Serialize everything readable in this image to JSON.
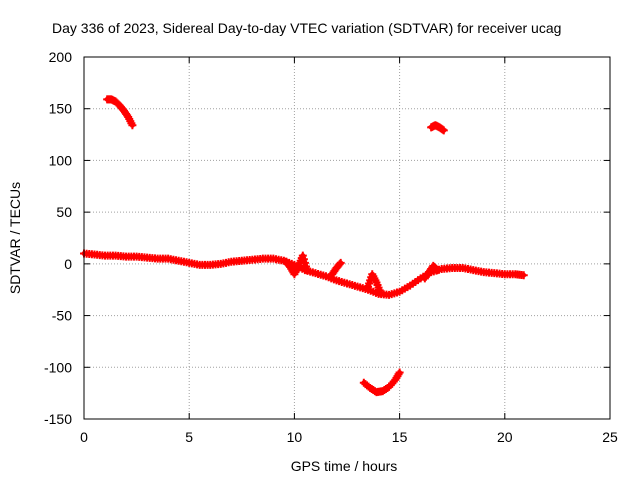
{
  "chart_data": {
    "type": "scatter",
    "title": "Day 336 of 2023, Sidereal Day-to-day VTEC variation (SDTVAR) for receiver ucag",
    "xlabel": "GPS time / hours",
    "ylabel": "SDTVAR / TECUs",
    "xlim": [
      0,
      25
    ],
    "ylim": [
      -150,
      200
    ],
    "xticks": [
      0,
      5,
      10,
      15,
      20,
      25
    ],
    "yticks": [
      -150,
      -100,
      -50,
      0,
      50,
      100,
      150,
      200
    ],
    "grid": true,
    "series_color": "#ff0000",
    "series": [
      {
        "name": "main-trace",
        "x": [
          0.0,
          0.5,
          1.0,
          1.5,
          2.0,
          2.5,
          3.0,
          3.5,
          4.0,
          4.5,
          5.0,
          5.5,
          6.0,
          6.5,
          7.0,
          7.5,
          8.0,
          8.5,
          9.0,
          9.5,
          10.0,
          10.5,
          11.0,
          11.5,
          12.0,
          12.5,
          13.0,
          13.5,
          14.0,
          14.5,
          15.0,
          15.5,
          16.0,
          16.5,
          17.0,
          17.5,
          18.0,
          18.5,
          19.0,
          19.5,
          20.0,
          20.5,
          20.9
        ],
        "y": [
          10,
          9,
          8,
          8,
          7,
          7,
          6,
          5,
          5,
          3,
          1,
          -1,
          -1,
          0,
          2,
          3,
          4,
          5,
          5,
          3,
          -1,
          -6,
          -9,
          -12,
          -16,
          -19,
          -22,
          -25,
          -29,
          -30,
          -27,
          -21,
          -14,
          -8,
          -5,
          -4,
          -4,
          -6,
          -8,
          -9,
          -10,
          -10,
          -11
        ]
      },
      {
        "name": "arc-early",
        "x": [
          1.1,
          1.3,
          1.5,
          1.7,
          1.9,
          2.1,
          2.3
        ],
        "y": [
          159,
          159,
          157,
          153,
          148,
          142,
          134
        ]
      },
      {
        "name": "arc-late",
        "x": [
          16.5,
          16.7,
          16.9,
          17.1
        ],
        "y": [
          132,
          134,
          132,
          129
        ]
      },
      {
        "name": "arc-bottom",
        "x": [
          13.3,
          13.6,
          13.9,
          14.2,
          14.5,
          14.8,
          15.0
        ],
        "y": [
          -115,
          -120,
          -124,
          -123,
          -119,
          -112,
          -105
        ]
      },
      {
        "name": "spike-10",
        "x": [
          9.6,
          9.8,
          10.0,
          10.2,
          10.4,
          10.6
        ],
        "y": [
          2,
          -3,
          -10,
          -2,
          8,
          -6
        ]
      },
      {
        "name": "spike-12",
        "x": [
          11.8,
          12.0,
          12.2
        ],
        "y": [
          -10,
          -4,
          1
        ]
      },
      {
        "name": "spike-14",
        "x": [
          13.5,
          13.7,
          13.9,
          14.1
        ],
        "y": [
          -22,
          -10,
          -18,
          -28
        ]
      },
      {
        "name": "spike-16",
        "x": [
          16.2,
          16.4,
          16.6,
          16.8
        ],
        "y": [
          -14,
          -8,
          -2,
          -6
        ]
      }
    ]
  }
}
